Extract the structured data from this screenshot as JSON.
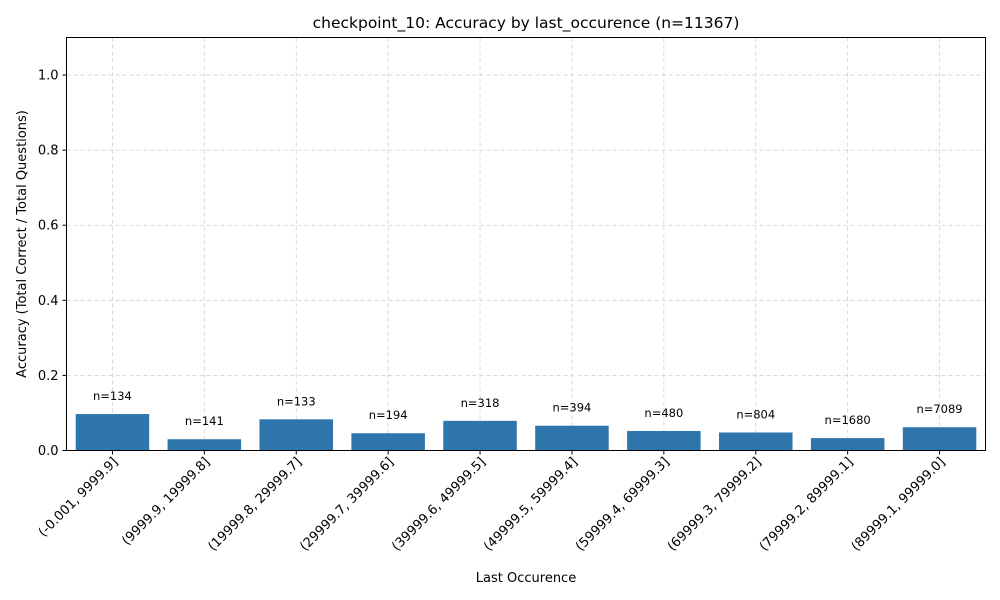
{
  "chart_data": {
    "type": "bar",
    "title": "checkpoint_10: Accuracy by last_occurence (n=11367)",
    "xlabel": "Last Occurence",
    "ylabel": "Accuracy (Total Correct / Total Questions)",
    "ylim": [
      0,
      1.1
    ],
    "yticks": [
      0.0,
      0.2,
      0.4,
      0.6,
      0.8,
      1.0
    ],
    "ytick_labels": [
      "0.0",
      "0.2",
      "0.4",
      "0.6",
      "0.8",
      "1.0"
    ],
    "grid": true,
    "bar_color": "#2e75ac",
    "categories": [
      "(-0.001, 9999.9]",
      "(9999.9, 19999.8]",
      "(19999.8, 29999.7]",
      "(29999.7, 39999.6]",
      "(39999.6, 49999.5]",
      "(49999.5, 59999.4]",
      "(59999.4, 69999.3]",
      "(69999.3, 79999.2]",
      "(79999.2, 89999.1]",
      "(89999.1, 99999.0]"
    ],
    "values": [
      0.097,
      0.03,
      0.083,
      0.046,
      0.079,
      0.066,
      0.052,
      0.048,
      0.033,
      0.062
    ],
    "annotations": [
      "n=134",
      "n=141",
      "n=133",
      "n=194",
      "n=318",
      "n=394",
      "n=480",
      "n=804",
      "n=1680",
      "n=7089"
    ]
  }
}
